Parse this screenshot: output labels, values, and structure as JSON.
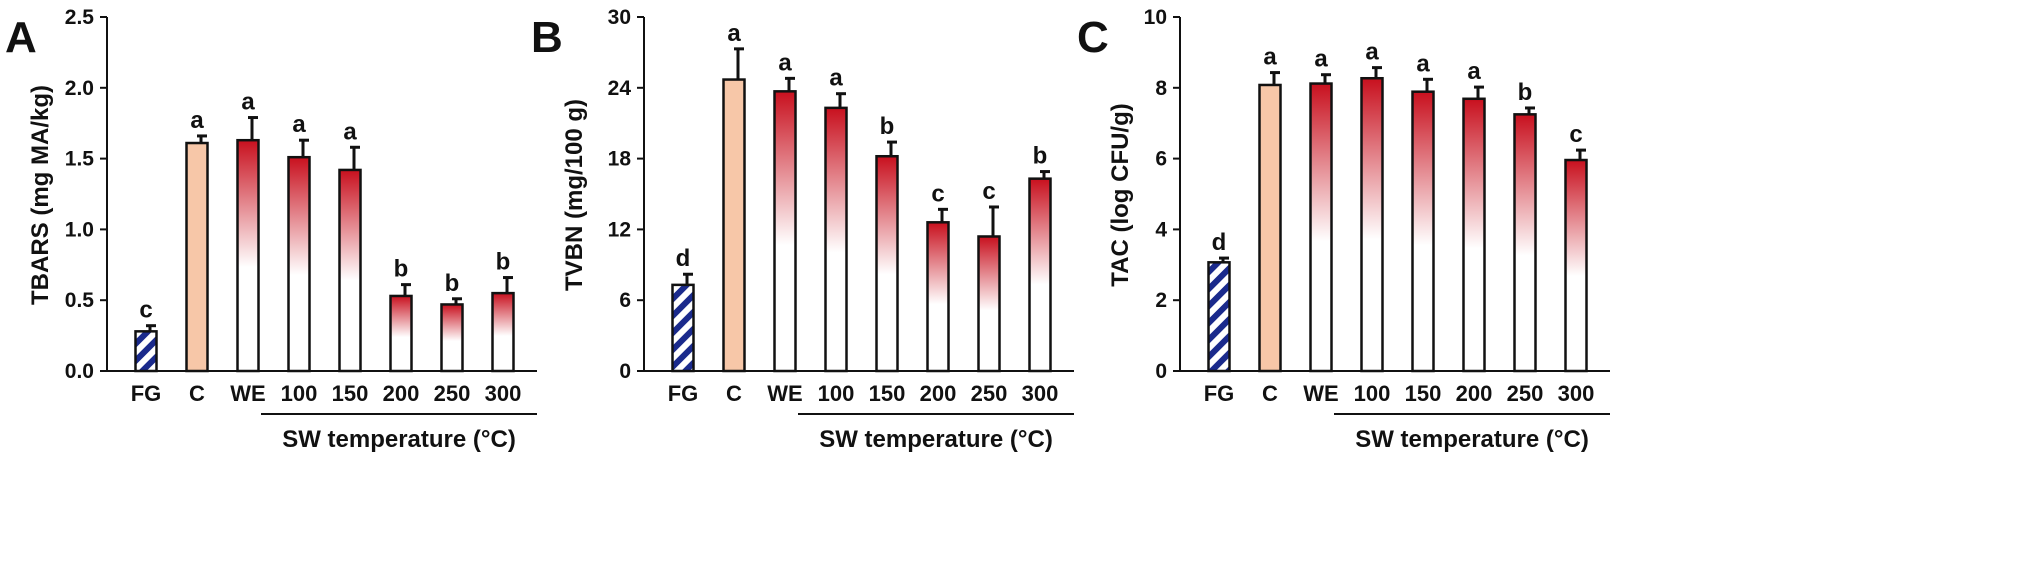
{
  "chart_data": [
    {
      "type": "bar",
      "panel_label": "A",
      "ylabel": "TBARS (mg MA/kg)",
      "ylim": [
        0,
        2.5
      ],
      "yticks": [
        "0.0",
        "0.5",
        "1.0",
        "1.5",
        "2.0",
        "2.5"
      ],
      "categories": [
        "FG",
        "C",
        "WE",
        "100",
        "150",
        "200",
        "250",
        "300"
      ],
      "values": [
        0.28,
        1.61,
        1.63,
        1.51,
        1.42,
        0.53,
        0.47,
        0.55
      ],
      "errors": [
        0.04,
        0.05,
        0.16,
        0.12,
        0.16,
        0.08,
        0.04,
        0.11
      ],
      "letters": [
        "c",
        "a",
        "a",
        "a",
        "a",
        "b",
        "b",
        "b"
      ],
      "group_label": "SW temperature (°C)",
      "fills": [
        "hatch",
        "solid",
        "gradient",
        "gradient",
        "gradient",
        "gradient",
        "gradient",
        "gradient"
      ]
    },
    {
      "type": "bar",
      "panel_label": "B",
      "ylabel": "TVBN (mg/100 g)",
      "ylim": [
        0,
        30
      ],
      "yticks": [
        "0",
        "6",
        "12",
        "18",
        "24",
        "30"
      ],
      "categories": [
        "FG",
        "C",
        "WE",
        "100",
        "150",
        "200",
        "250",
        "300"
      ],
      "values": [
        7.3,
        24.7,
        23.7,
        22.3,
        18.2,
        12.6,
        11.4,
        16.3
      ],
      "errors": [
        0.9,
        2.6,
        1.1,
        1.2,
        1.2,
        1.1,
        2.5,
        0.6
      ],
      "letters": [
        "d",
        "a",
        "a",
        "a",
        "b",
        "c",
        "c",
        "b"
      ],
      "group_label": "SW temperature (°C)",
      "fills": [
        "hatch",
        "solid",
        "gradient",
        "gradient",
        "gradient",
        "gradient",
        "gradient",
        "gradient"
      ]
    },
    {
      "type": "bar",
      "panel_label": "C",
      "ylabel": "TAC (log CFU/g)",
      "ylim": [
        0,
        10
      ],
      "yticks": [
        "0",
        "2",
        "4",
        "6",
        "8",
        "10"
      ],
      "categories": [
        "FG",
        "C",
        "WE",
        "100",
        "150",
        "200",
        "250",
        "300"
      ],
      "values": [
        3.07,
        8.08,
        8.12,
        8.27,
        7.89,
        7.69,
        7.25,
        5.96
      ],
      "errors": [
        0.12,
        0.35,
        0.25,
        0.3,
        0.35,
        0.33,
        0.18,
        0.28
      ],
      "letters": [
        "d",
        "a",
        "a",
        "a",
        "a",
        "a",
        "b",
        "c"
      ],
      "group_label": "SW temperature (°C)",
      "fills": [
        "hatch",
        "solid",
        "gradient",
        "gradient",
        "gradient",
        "gradient",
        "gradient",
        "gradient"
      ]
    }
  ],
  "colors": {
    "axis": "#111111",
    "hatch_blue": "#1a2a8c",
    "solid_fill": "#f7c7a8",
    "gradient_top": "#c8101e",
    "gradient_bottom": "#ffffff"
  }
}
